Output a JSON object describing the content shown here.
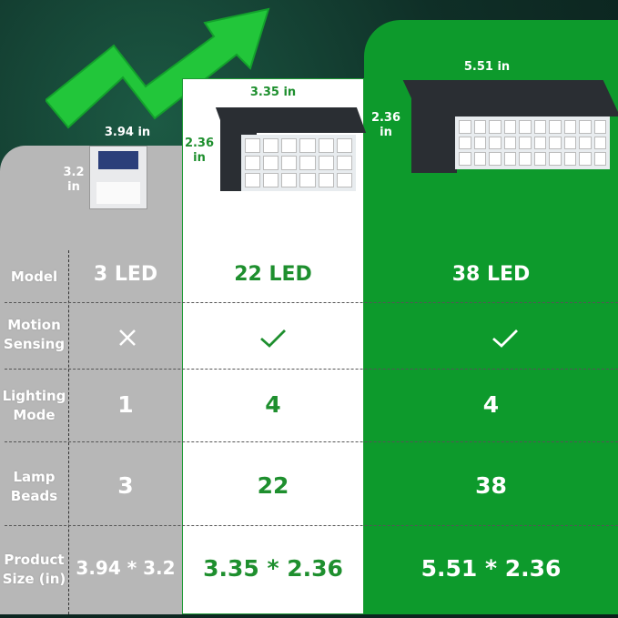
{
  "products": [
    {
      "model": "3 LED",
      "width_label": "3.94 in",
      "height_label": "3.2 in",
      "motion_sensing": false,
      "lighting_mode": "1",
      "lamp_beads": "3",
      "size": "3.94 * 3.2"
    },
    {
      "model": "22 LED",
      "width_label": "3.35 in",
      "height_label": "2.36 in",
      "motion_sensing": true,
      "lighting_mode": "4",
      "lamp_beads": "22",
      "size": "3.35 * 2.36"
    },
    {
      "model": "38 LED",
      "width_label": "5.51 in",
      "height_label": "2.36 in",
      "motion_sensing": true,
      "lighting_mode": "4",
      "lamp_beads": "38",
      "size": "5.51 * 2.36"
    }
  ],
  "row_labels": {
    "model": "Model",
    "motion": "Motion Sensing",
    "lighting": "Lighting Mode",
    "beads": "Lamp Beads",
    "size": "Product Size (in)"
  },
  "icons": {
    "no": "cross-icon",
    "yes": "check-icon",
    "growth": "trend-arrow-icon"
  },
  "colors": {
    "accent_green": "#0d9a2c",
    "text_green": "#1e8f2e",
    "gray": "#b7b7b7"
  }
}
